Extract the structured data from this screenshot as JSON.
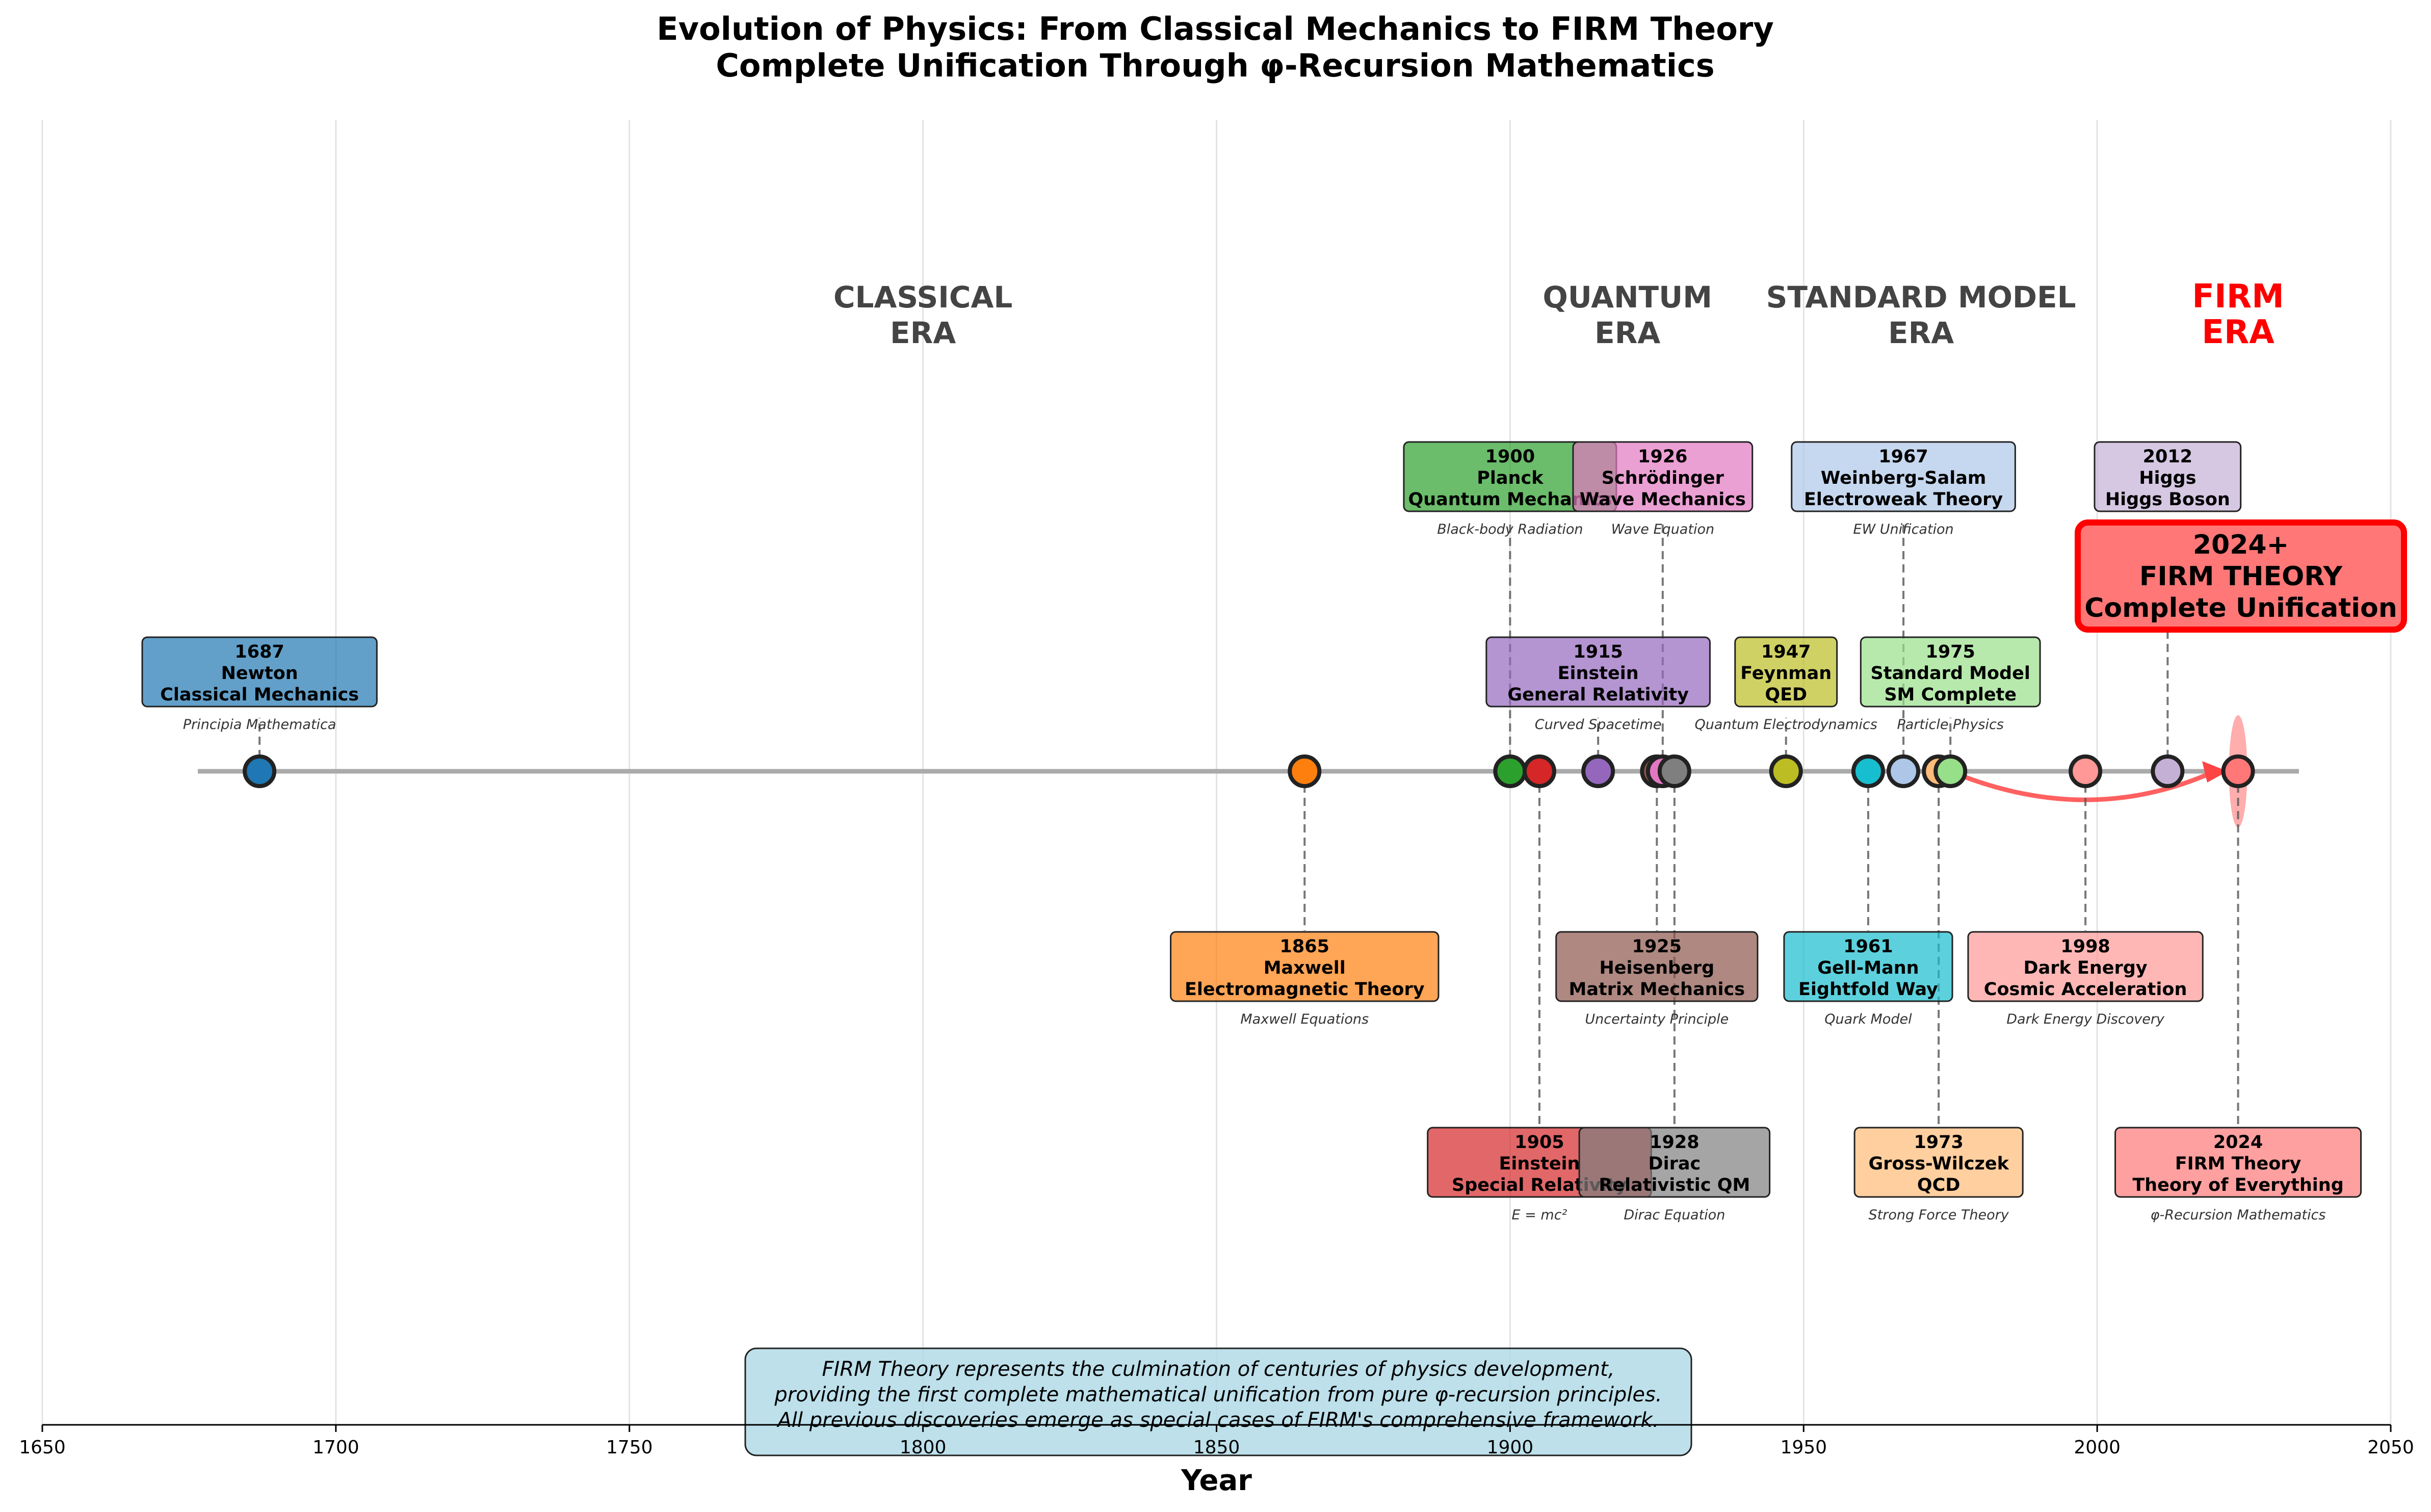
{
  "title": "Evolution of Physics: From Classical Mechanics to FIRM Theory",
  "subtitle": "Complete Unification Through φ-Recursion Mathematics",
  "chart_data": {
    "type": "scatter",
    "title": "Evolution of Physics: From Classical Mechanics to FIRM Theory",
    "subtitle": "Complete Unification Through φ-Recursion Mathematics",
    "xlabel": "Year",
    "ylabel": "",
    "xlim": [
      1650,
      2050
    ],
    "x_ticks": [
      "1650",
      "1700",
      "1750",
      "1800",
      "1850",
      "1900",
      "1950",
      "2000",
      "2050"
    ],
    "grid": "vertical",
    "era_labels": [
      {
        "line1": "CLASSICAL",
        "line2": "ERA",
        "x": 1800,
        "color": "#444444"
      },
      {
        "line1": "QUANTUM",
        "line2": "ERA",
        "x": 1920,
        "color": "#444444"
      },
      {
        "line1": "STANDARD MODEL",
        "line2": "ERA",
        "x": 1970,
        "color": "#444444"
      },
      {
        "line1": "FIRM",
        "line2": "ERA",
        "x": 2024,
        "color": "#ff0000"
      }
    ],
    "events": [
      {
        "year": 1687,
        "year_label": "1687",
        "scientist": "Newton",
        "theory": "Classical Mechanics",
        "note": "Principia Mathematica",
        "level": 1,
        "color": "#1f77b4"
      },
      {
        "year": 1865,
        "year_label": "1865",
        "scientist": "Maxwell",
        "theory": "Electromagnetic Theory",
        "note": "Maxwell Equations",
        "level": -1,
        "color": "#ff7f0e"
      },
      {
        "year": 1900,
        "year_label": "1900",
        "scientist": "Planck",
        "theory": "Quantum Mechanics",
        "note": "Black-body Radiation",
        "level": 2,
        "color": "#2ca02c"
      },
      {
        "year": 1905,
        "year_label": "1905",
        "scientist": "Einstein",
        "theory": "Special Relativity",
        "note": "E = mc²",
        "level": -2,
        "color": "#d62728"
      },
      {
        "year": 1915,
        "year_label": "1915",
        "scientist": "Einstein",
        "theory": "General Relativity",
        "note": "Curved Spacetime",
        "level": 1,
        "color": "#9467bd"
      },
      {
        "year": 1925,
        "year_label": "1925",
        "scientist": "Heisenberg",
        "theory": "Matrix Mechanics",
        "note": "Uncertainty Principle",
        "level": -1,
        "color": "#8c564b"
      },
      {
        "year": 1926,
        "year_label": "1926",
        "scientist": "Schrödinger",
        "theory": "Wave Mechanics",
        "note": "Wave Equation",
        "level": 2,
        "color": "#e377c2"
      },
      {
        "year": 1928,
        "year_label": "1928",
        "scientist": "Dirac",
        "theory": "Relativistic QM",
        "note": "Dirac Equation",
        "level": -2,
        "color": "#7f7f7f"
      },
      {
        "year": 1947,
        "year_label": "1947",
        "scientist": "Feynman",
        "theory": "QED",
        "note": "Quantum Electrodynamics",
        "level": 1,
        "color": "#bcbd22"
      },
      {
        "year": 1961,
        "year_label": "1961",
        "scientist": "Gell-Mann",
        "theory": "Eightfold Way",
        "note": "Quark Model",
        "level": -1,
        "color": "#17becf"
      },
      {
        "year": 1967,
        "year_label": "1967",
        "scientist": "Weinberg-Salam",
        "theory": "Electroweak Theory",
        "note": "EW Unification",
        "level": 2,
        "color": "#aec7e8"
      },
      {
        "year": 1973,
        "year_label": "1973",
        "scientist": "Gross-Wilczek",
        "theory": "QCD",
        "note": "Strong Force Theory",
        "level": -2,
        "color": "#ffbb78"
      },
      {
        "year": 1975,
        "year_label": "1975",
        "scientist": "Standard Model",
        "theory": "SM Complete",
        "note": "Particle Physics",
        "level": 1,
        "color": "#98df8a"
      },
      {
        "year": 1998,
        "year_label": "1998",
        "scientist": "Dark Energy",
        "theory": "Cosmic Acceleration",
        "note": "Dark Energy Discovery",
        "level": -1,
        "color": "#ff9896"
      },
      {
        "year": 2012,
        "year_label": "2012",
        "scientist": "Higgs",
        "theory": "Higgs Boson",
        "note": "",
        "level": 2,
        "color": "#c5b0d5"
      },
      {
        "year": 2024,
        "year_label": "2024",
        "scientist": "FIRM Theory",
        "theory": "Theory of Everything",
        "note": "φ-Recursion Mathematics",
        "level": -2,
        "color": "#ff7777"
      }
    ],
    "highlight": {
      "line1": "2024+",
      "line2": "FIRM THEORY",
      "line3": "Complete Unification",
      "color": "#ff7777",
      "border_color": "#ff0000"
    },
    "arrow": {
      "from_year": 1975,
      "to_year": 2021,
      "color": "#ff4444"
    },
    "footnote": [
      "FIRM Theory represents the culmination of centuries of physics development,",
      "providing the first complete mathematical unification from pure φ-recursion principles.",
      "All previous discoveries emerge as special cases of FIRM's comprehensive framework."
    ],
    "footnote_bg": "#add8e6"
  }
}
